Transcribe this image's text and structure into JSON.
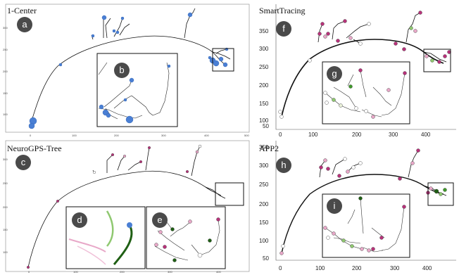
{
  "panels": [
    {
      "id": "a",
      "title": "1-Center",
      "badge": "a",
      "inset_badge": "b",
      "yticks": [
        "300",
        "250",
        "200",
        "150",
        "100"
      ],
      "xticks": [
        "0",
        "100",
        "200",
        "300",
        "400",
        "500"
      ]
    },
    {
      "id": "c",
      "title": "NeuroGPS-Tree",
      "badge": "c",
      "inset_badges": [
        "d",
        "e"
      ],
      "yticks": [
        "300",
        "250",
        "200",
        "150",
        "100"
      ],
      "xticks": [
        "0",
        "100",
        "200",
        "300",
        "400"
      ]
    },
    {
      "id": "f",
      "title": "SmartTracing",
      "badge": "f",
      "inset_badge": "g",
      "yticks": [
        "350",
        "300",
        "250",
        "200",
        "150",
        "100",
        "50"
      ],
      "xticks": [
        "0",
        "100",
        "200",
        "300",
        "400"
      ]
    },
    {
      "id": "h",
      "title": "APP2",
      "badge": "h",
      "inset_badge": "i",
      "yticks": [
        "350",
        "300",
        "250",
        "200",
        "150",
        "100",
        "50"
      ],
      "xticks": [
        "0",
        "100",
        "200",
        "300",
        "400"
      ]
    }
  ],
  "colors": {
    "trace": "#111111",
    "blue": "#4a7fd4",
    "magenta": "#b8327a",
    "pink": "#e8a8c8",
    "green": "#3f9a2a",
    "darkgreen": "#1f5f14",
    "badge": "#4a4a4a"
  }
}
